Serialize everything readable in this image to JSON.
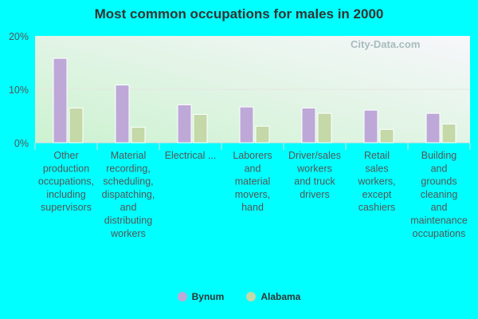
{
  "chart_data": {
    "type": "bar",
    "title": "Most common occupations for males in 2000",
    "categories": [
      [
        "Other",
        "production",
        "occupations,",
        "including",
        "supervisors"
      ],
      [
        "Material",
        "recording,",
        "scheduling,",
        "dispatching,",
        "and",
        "distributing",
        "workers"
      ],
      [
        "Electrical ..."
      ],
      [
        "Laborers",
        "and",
        "material",
        "movers,",
        "hand"
      ],
      [
        "Driver/sales",
        "workers",
        "and truck",
        "drivers"
      ],
      [
        "Retail",
        "sales",
        "workers,",
        "except",
        "cashiers"
      ],
      [
        "Building",
        "and",
        "grounds",
        "cleaning",
        "and",
        "maintenance",
        "occupations"
      ]
    ],
    "series": [
      {
        "name": "Bynum",
        "color": "#bea8d8",
        "values": [
          15.8,
          10.8,
          7.1,
          6.7,
          6.5,
          6.1,
          5.5
        ]
      },
      {
        "name": "Alabama",
        "color": "#c4d8a8",
        "values": [
          6.5,
          2.9,
          5.3,
          3.1,
          5.5,
          2.5,
          3.5
        ]
      }
    ],
    "yticks": [
      "0%",
      "10%",
      "20%"
    ],
    "ylim": [
      0,
      20
    ],
    "grid": true,
    "legend": "bottom",
    "watermark": "City-Data.com"
  }
}
